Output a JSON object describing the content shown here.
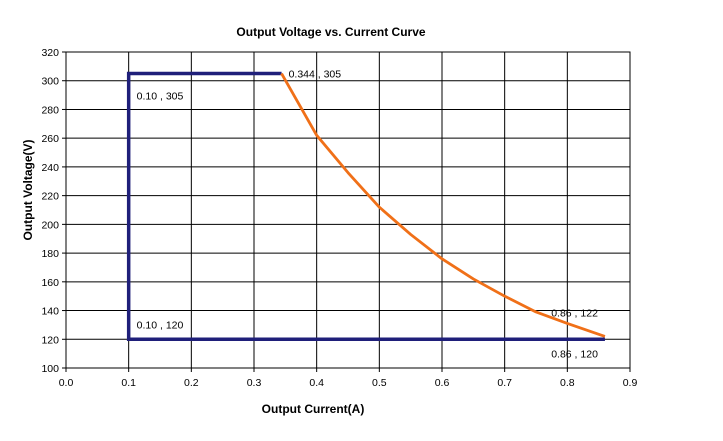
{
  "chart_data": {
    "type": "line",
    "title": "Output Voltage vs. Current Curve",
    "xlabel": "Output Current(A)",
    "ylabel": "Output Voltage(V)",
    "xlim": [
      0.0,
      0.9
    ],
    "ylim": [
      100,
      320
    ],
    "x_ticks": [
      "0.0",
      "0.1",
      "0.2",
      "0.3",
      "0.4",
      "0.5",
      "0.6",
      "0.7",
      "0.8",
      "0.9"
    ],
    "y_ticks": [
      "100",
      "120",
      "140",
      "160",
      "180",
      "200",
      "220",
      "240",
      "260",
      "280",
      "300",
      "320"
    ],
    "grid": true,
    "legend": "none",
    "series": [
      {
        "color": "#1f1f7a",
        "points": [
          [
            0.344,
            305
          ],
          [
            0.1,
            305
          ],
          [
            0.1,
            120
          ],
          [
            0.86,
            120
          ]
        ]
      },
      {
        "color": "#f07018",
        "points": [
          [
            0.344,
            305
          ],
          [
            0.4,
            262
          ],
          [
            0.45,
            236
          ],
          [
            0.5,
            212
          ],
          [
            0.55,
            193
          ],
          [
            0.6,
            176
          ],
          [
            0.65,
            162
          ],
          [
            0.7,
            150
          ],
          [
            0.75,
            139
          ],
          [
            0.8,
            131
          ],
          [
            0.86,
            122
          ]
        ]
      }
    ],
    "annotations": [
      {
        "text": "0.10 , 305",
        "x": 0.1,
        "y": 305
      },
      {
        "text": "0.344 , 305",
        "x": 0.344,
        "y": 305
      },
      {
        "text": "0.10 , 120",
        "x": 0.1,
        "y": 120
      },
      {
        "text": "0.86 , 122",
        "x": 0.86,
        "y": 122
      },
      {
        "text": "0.86 , 120",
        "x": 0.86,
        "y": 120
      }
    ]
  }
}
